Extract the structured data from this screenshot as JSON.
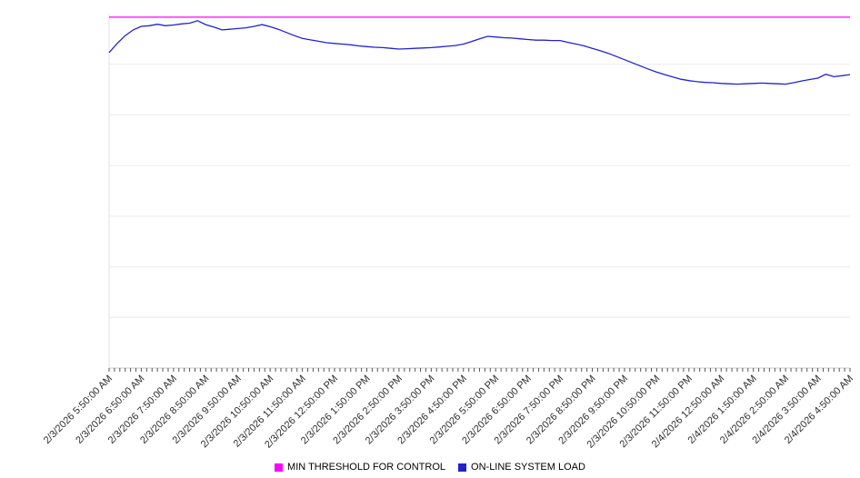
{
  "chart_data": {
    "type": "line",
    "title": "",
    "xlabel": "",
    "ylabel": "",
    "ylim": [
      0,
      100
    ],
    "grid": true,
    "y_axis_labels_visible": false,
    "legend_position": "bottom",
    "categories": [
      "2/3/2026 5:50:00 AM",
      "2/3/2026 6:50:00 AM",
      "2/3/2026 7:50:00 AM",
      "2/3/2026 8:50:00 AM",
      "2/3/2026 9:50:00 AM",
      "2/3/2026 10:50:00 AM",
      "2/3/2026 11:50:00 AM",
      "2/3/2026 12:50:00 PM",
      "2/3/2026 1:50:00 PM",
      "2/3/2026 2:50:00 PM",
      "2/3/2026 3:50:00 PM",
      "2/3/2026 4:50:00 PM",
      "2/3/2026 5:50:00 PM",
      "2/3/2026 6:50:00 PM",
      "2/3/2026 7:50:00 PM",
      "2/3/2026 8:50:00 PM",
      "2/3/2026 9:50:00 PM",
      "2/3/2026 10:50:00 PM",
      "2/3/2026 11:50:00 PM",
      "2/4/2026 12:50:00 AM",
      "2/4/2026 1:50:00 AM",
      "2/4/2026 2:50:00 AM",
      "2/4/2026 3:50:00 AM",
      "2/4/2026 4:50:00 AM"
    ],
    "series": [
      {
        "name": "MIN THRESHOLD FOR CONTROL",
        "color": "#ff00ff",
        "values": [
          99,
          99
        ]
      },
      {
        "name": "ON-LINE SYSTEM LOAD",
        "color": "#2222cc",
        "values": [
          89.0,
          91.6,
          93.8,
          95.4,
          96.4,
          96.6,
          97.0,
          96.6,
          96.8,
          97.1,
          97.3,
          98.0,
          96.9,
          96.2,
          95.4,
          95.6,
          95.8,
          96.0,
          96.4,
          96.9,
          96.3,
          95.6,
          94.7,
          93.8,
          93.0,
          92.6,
          92.2,
          91.8,
          91.6,
          91.4,
          91.2,
          90.9,
          90.7,
          90.5,
          90.4,
          90.2,
          90.0,
          90.1,
          90.2,
          90.3,
          90.4,
          90.6,
          90.8,
          91.0,
          91.4,
          92.1,
          92.9,
          93.6,
          93.4,
          93.2,
          93.1,
          92.9,
          92.7,
          92.5,
          92.5,
          92.4,
          92.4,
          91.9,
          91.4,
          90.9,
          90.2,
          89.5,
          88.8,
          87.9,
          87.0,
          86.1,
          85.2,
          84.3,
          83.5,
          82.8,
          82.1,
          81.5,
          81.1,
          80.8,
          80.6,
          80.5,
          80.3,
          80.2,
          80.1,
          80.2,
          80.3,
          80.4,
          80.3,
          80.2,
          80.1,
          80.5,
          81.0,
          81.4,
          81.8,
          82.9,
          82.2,
          82.5,
          82.8
        ]
      }
    ]
  }
}
